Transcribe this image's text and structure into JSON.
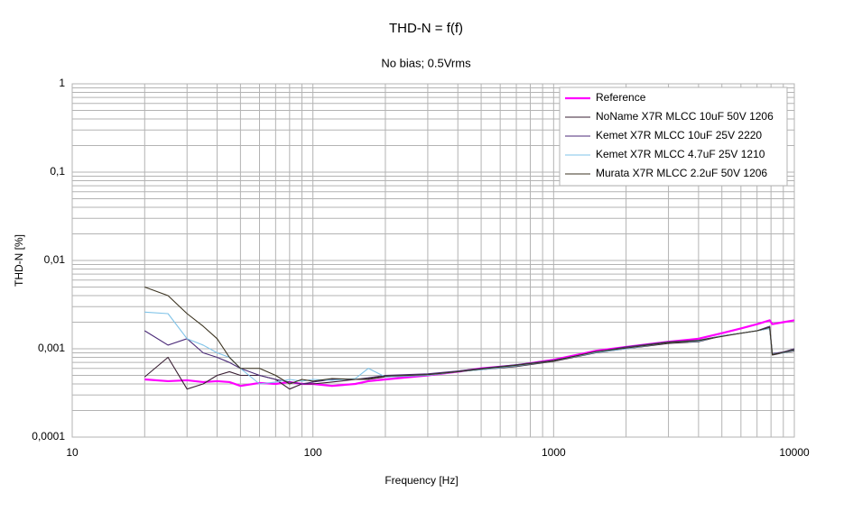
{
  "chart_data": {
    "type": "line",
    "title": "THD-N = f(f)",
    "subtitle": "No bias; 0.5Vrms",
    "x_label": "Frequency [Hz]",
    "y_label": "THD-N [%]",
    "xlog": true,
    "ylog": true,
    "grid": true,
    "legend": "upper right",
    "xlim": [
      10,
      10000
    ],
    "ylim": [
      0.0001,
      1
    ],
    "xticks": [
      10,
      100,
      1000,
      10000
    ],
    "yticks": [
      {
        "value": 0.0001,
        "label": "0,0001"
      },
      {
        "value": 0.001,
        "label": "0,001"
      },
      {
        "value": 0.01,
        "label": "0,01"
      },
      {
        "value": 0.1,
        "label": "0,1"
      },
      1
    ],
    "x": [
      20,
      25,
      30,
      35,
      40,
      45,
      50,
      60,
      70,
      80,
      90,
      100,
      120,
      150,
      170,
      200,
      300,
      400,
      500,
      700,
      1000,
      1500,
      2000,
      3000,
      4000,
      5000,
      6000,
      7000,
      7900,
      8100,
      9000,
      10000
    ],
    "series": [
      {
        "name": "Reference",
        "color": "#ff00ff",
        "values": [
          0.00045,
          0.00043,
          0.00044,
          0.00042,
          0.00043,
          0.00042,
          0.00038,
          0.00041,
          0.0004,
          0.00042,
          0.0004,
          0.0004,
          0.00038,
          0.0004,
          0.00043,
          0.00045,
          0.0005,
          0.00055,
          0.0006,
          0.00065,
          0.00075,
          0.00095,
          0.00105,
          0.0012,
          0.0013,
          0.0015,
          0.0017,
          0.0019,
          0.0021,
          0.0019,
          0.002,
          0.0021
        ]
      },
      {
        "name": "NoName X7R MLCC 10uF 50V 1206",
        "color": "#3a1f33",
        "values": [
          0.00048,
          0.0008,
          0.00035,
          0.0004,
          0.0005,
          0.00055,
          0.0005,
          0.0005,
          0.00045,
          0.00035,
          0.0004,
          0.0004,
          0.00042,
          0.00045,
          0.00045,
          0.00048,
          0.0005,
          0.00055,
          0.00058,
          0.00063,
          0.00072,
          0.0009,
          0.001,
          0.00115,
          0.0012,
          0.0014,
          0.0015,
          0.0016,
          0.0017,
          0.00085,
          0.0009,
          0.00095
        ]
      },
      {
        "name": "Kemet X7R MLCC  10uF 25V 2220",
        "color": "#4b2a78",
        "values": [
          0.0016,
          0.0011,
          0.0013,
          0.0009,
          0.0008,
          0.0007,
          0.0006,
          0.0005,
          0.00045,
          0.00042,
          0.0004,
          0.00042,
          0.00045,
          0.00045,
          0.00047,
          0.0005,
          0.00052,
          0.00056,
          0.0006,
          0.00066,
          0.00074,
          0.00092,
          0.00105,
          0.0012,
          0.00125,
          0.0014,
          0.0015,
          0.0016,
          0.0018,
          0.00088,
          0.00092,
          0.001
        ]
      },
      {
        "name": "Kemet X7R MLCC  4.7uF 25V 1210",
        "color": "#7fc3e8",
        "values": [
          0.0026,
          0.0025,
          0.0013,
          0.0011,
          0.0009,
          0.0008,
          0.0006,
          0.0004,
          0.00042,
          0.00045,
          0.00043,
          0.00045,
          0.00044,
          0.00046,
          0.0006,
          0.00048,
          0.0005,
          0.00055,
          0.00058,
          0.00064,
          0.00073,
          0.00091,
          0.001,
          0.00118,
          0.00122,
          0.0014,
          0.0015,
          0.0016,
          0.0017,
          0.00087,
          0.0009,
          0.00097
        ]
      },
      {
        "name": "Murata X7R MLCC  2.2uF 50V 1206",
        "color": "#3b3320",
        "values": [
          0.005,
          0.004,
          0.0025,
          0.0018,
          0.0013,
          0.0008,
          0.0006,
          0.0006,
          0.0005,
          0.0004,
          0.00045,
          0.00043,
          0.00046,
          0.00045,
          0.00046,
          0.00049,
          0.00051,
          0.00055,
          0.00059,
          0.00065,
          0.00073,
          0.00093,
          0.00102,
          0.00118,
          0.00124,
          0.00138,
          0.0015,
          0.0016,
          0.00175,
          0.00086,
          0.00091,
          0.00098
        ]
      }
    ]
  }
}
